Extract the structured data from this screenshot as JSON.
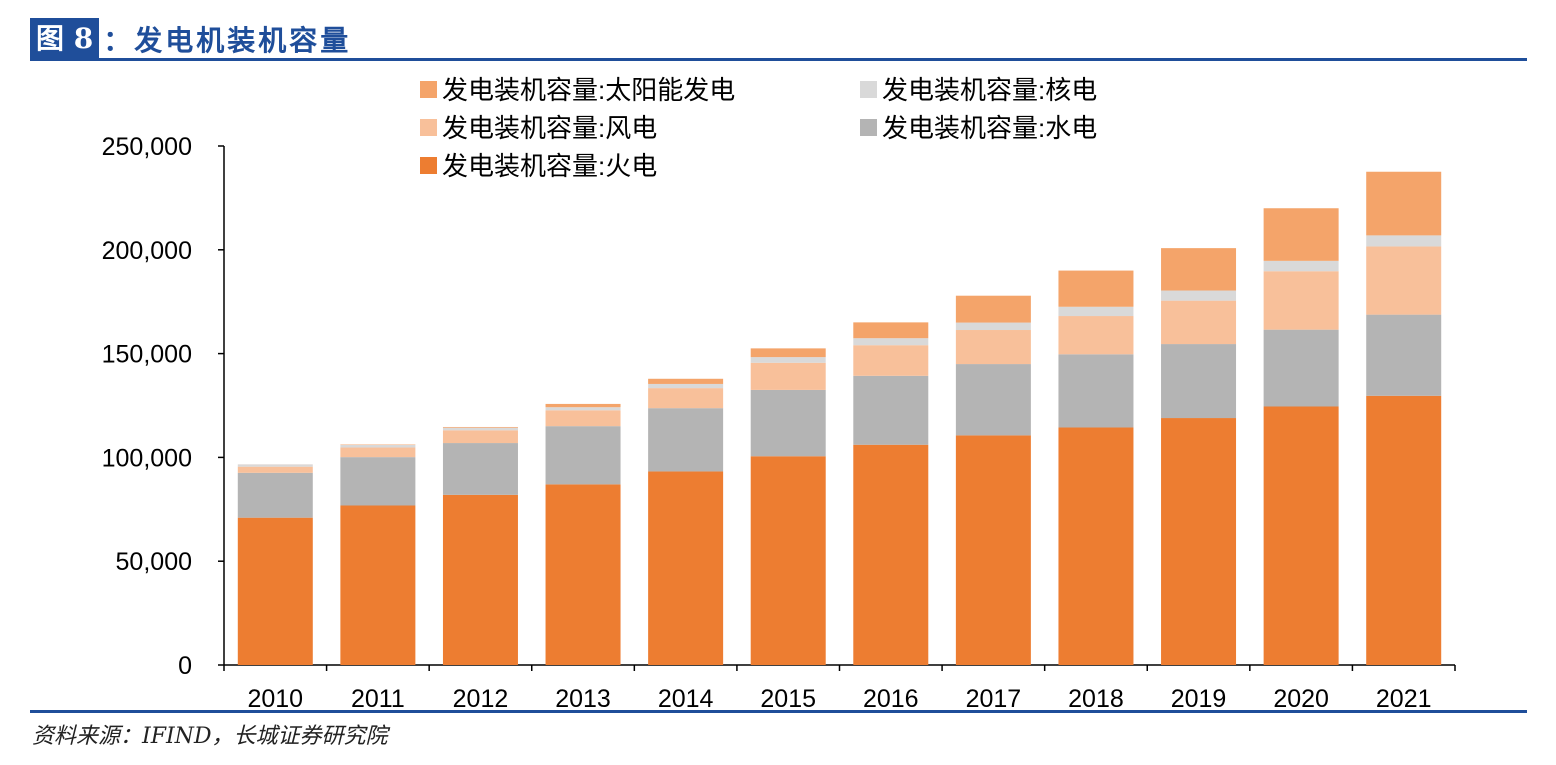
{
  "header": {
    "figure_number": "图 8",
    "title": "：发电机装机容量"
  },
  "source": "资料来源：IFIND，长城证券研究院",
  "colors": {
    "accent": "#1F4E9A"
  },
  "chart_data": {
    "type": "bar",
    "stacked": true,
    "title": "发电机装机容量",
    "xlabel": "",
    "ylabel": "",
    "ylim": [
      0,
      250000
    ],
    "yticks": [
      0,
      50000,
      100000,
      150000,
      200000,
      250000
    ],
    "ytick_labels": [
      "0",
      "50,000",
      "100,000",
      "150,000",
      "200,000",
      "250,000"
    ],
    "legend_placement": "top",
    "categories": [
      "2010",
      "2011",
      "2012",
      "2013",
      "2014",
      "2015",
      "2016",
      "2017",
      "2018",
      "2019",
      "2020",
      "2021"
    ],
    "series": [
      {
        "name": "发电装机容量:火电",
        "color": "#ED7D31",
        "values": [
          70967,
          76834,
          81968,
          87009,
          93232,
          100554,
          106094,
          110604,
          114408,
          118957,
          124517,
          129678
        ]
      },
      {
        "name": "发电装机容量:水电",
        "color": "#B4B4B4",
        "values": [
          21606,
          23298,
          24947,
          28044,
          30486,
          31954,
          33207,
          34359,
          35259,
          35640,
          37016,
          39092
        ]
      },
      {
        "name": "发电装机容量:风电",
        "color": "#F8C09A",
        "values": [
          2958,
          4623,
          6142,
          7652,
          9657,
          13075,
          14747,
          16400,
          18427,
          20915,
          28153,
          32848
        ]
      },
      {
        "name": "发电装机容量:核电",
        "color": "#D9D9D9",
        "values": [
          1082,
          1257,
          1257,
          1466,
          2008,
          2717,
          3364,
          3582,
          4466,
          4874,
          4989,
          5326
        ]
      },
      {
        "name": "发电装机容量:太阳能发电",
        "color": "#F4A46A",
        "values": [
          26,
          212,
          341,
          1589,
          2486,
          4218,
          7631,
          12942,
          17433,
          20418,
          25343,
          30656
        ]
      }
    ],
    "legend_order": [
      4,
      3,
      2,
      1,
      0
    ]
  }
}
